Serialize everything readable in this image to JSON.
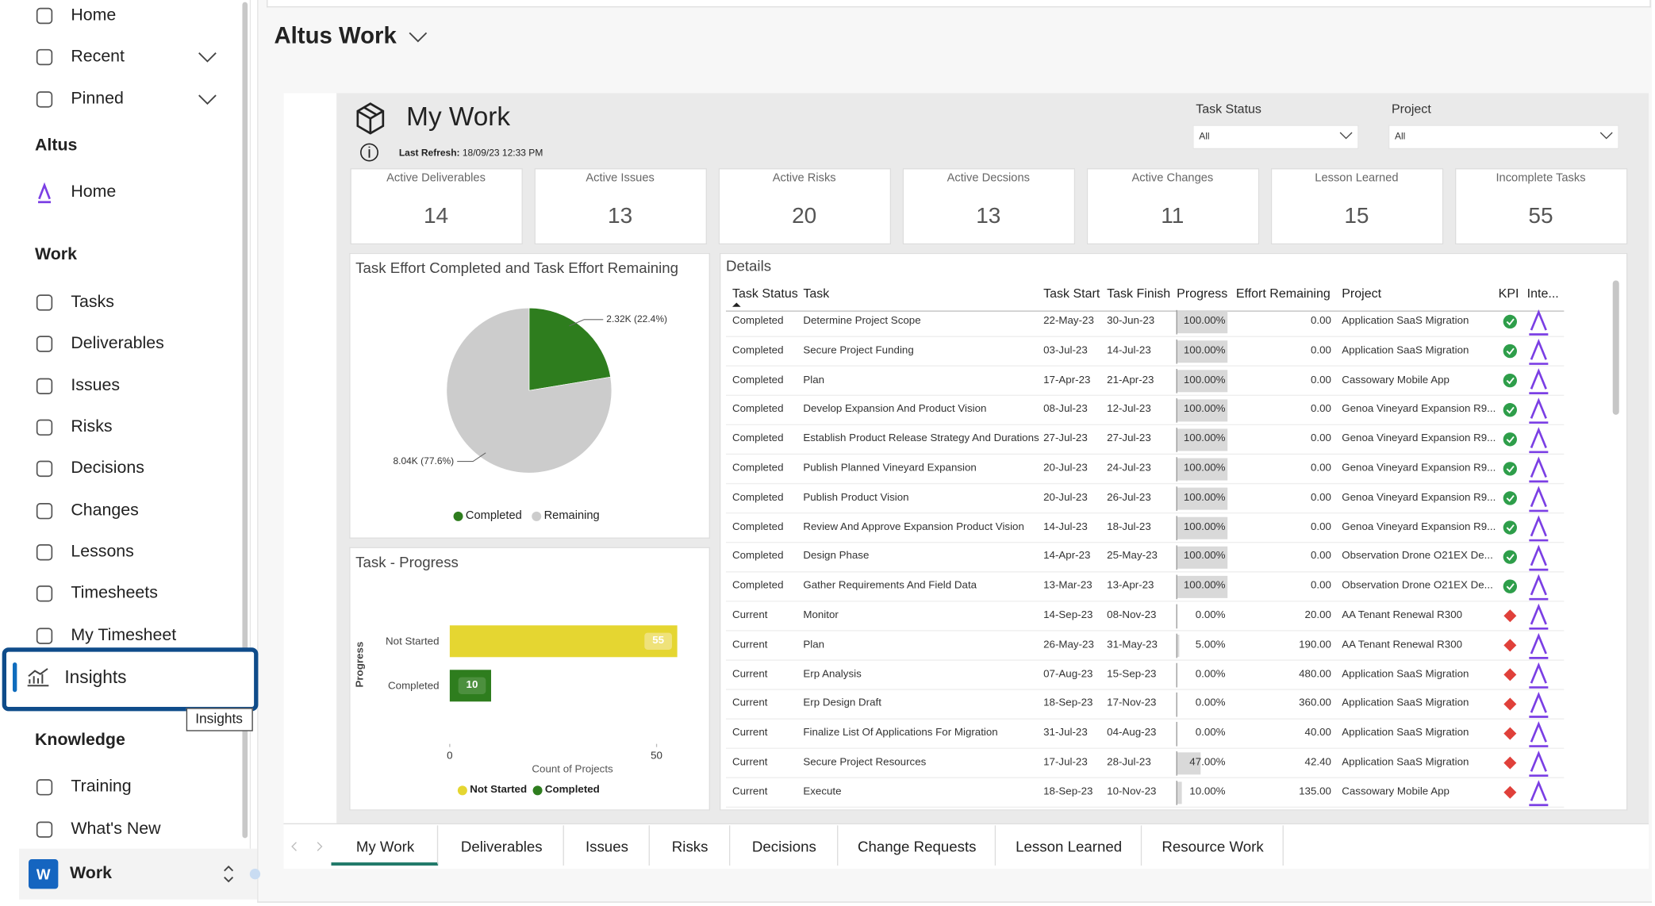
{
  "sidebar": {
    "nav": [
      "Home",
      "Recent",
      "Pinned"
    ],
    "sections": [
      {
        "title": "Altus",
        "items": [
          "Home"
        ]
      },
      {
        "title": "Work",
        "items": [
          "Tasks",
          "Deliverables",
          "Issues",
          "Risks",
          "Decisions",
          "Changes",
          "Lessons",
          "Timesheets",
          "My Timesheet",
          "Insights"
        ]
      },
      {
        "title": "Knowledge",
        "items": [
          "Training",
          "What's New"
        ]
      }
    ],
    "tooltip": "Insights",
    "footer": {
      "badge": "W",
      "label": "Work"
    }
  },
  "header": {
    "title": "Altus Work"
  },
  "report": {
    "title": "My Work",
    "last_refresh_label": "Last Refresh:",
    "last_refresh": "18/09/23 12:33 PM",
    "filters": [
      {
        "label": "Task Status",
        "value": "All"
      },
      {
        "label": "Project",
        "value": "All"
      }
    ],
    "cards": [
      {
        "label": "Active Deliverables",
        "value": 14
      },
      {
        "label": "Active Issues",
        "value": 13
      },
      {
        "label": "Active Risks",
        "value": 20
      },
      {
        "label": "Active Decsions",
        "value": 13
      },
      {
        "label": "Active Changes",
        "value": 11
      },
      {
        "label": "Lesson Learned",
        "value": 15
      },
      {
        "label": "Incomplete Tasks",
        "value": 55
      }
    ],
    "pie_chart": {
      "type": "pie",
      "title": "Task Effort Completed and Task Effort Remaining",
      "categories": [
        "Completed",
        "Remaining"
      ],
      "values": [
        2320,
        8040
      ],
      "value_labels": [
        "2.32K (22.4%)",
        "8.04K (77.6%)"
      ],
      "colors": [
        "#2e7d1e",
        "#cccccc"
      ]
    },
    "bar_chart": {
      "type": "bar",
      "orientation": "horizontal",
      "title": "Task - Progress",
      "y_label": "Progress",
      "x_label": "Count of Projects",
      "categories": [
        "Not Started",
        "Completed"
      ],
      "values": [
        55,
        10
      ],
      "colors": [
        "#e5d631",
        "#2e7d1e"
      ],
      "xlim": [
        0,
        55
      ],
      "xticks": [
        0,
        50
      ]
    },
    "details": {
      "title": "Details",
      "columns": [
        "Task Status",
        "Task",
        "Task Start",
        "Task Finish",
        "Progress",
        "Effort Remaining",
        "Project",
        "KPI",
        "Inte..."
      ],
      "rows": [
        {
          "status": "Completed",
          "task": "Determine Project Scope",
          "start": "22-May-23",
          "finish": "30-Jun-23",
          "progress": {
            "value": 100,
            "label": "100.00%"
          },
          "remaining": "0.00",
          "project": "Application SaaS Migration",
          "kpi": "#2e9e4a"
        },
        {
          "status": "Completed",
          "task": "Secure Project Funding",
          "start": "03-Jul-23",
          "finish": "14-Jul-23",
          "progress": {
            "value": 100,
            "label": "100.00%"
          },
          "remaining": "0.00",
          "project": "Application SaaS Migration",
          "kpi": "#2e9e4a"
        },
        {
          "status": "Completed",
          "task": "Plan",
          "start": "17-Apr-23",
          "finish": "21-Apr-23",
          "progress": {
            "value": 100,
            "label": "100.00%"
          },
          "remaining": "0.00",
          "project": "Cassowary Mobile App",
          "kpi": "#2e9e4a"
        },
        {
          "status": "Completed",
          "task": "Develop Expansion And Product Vision",
          "start": "08-Jul-23",
          "finish": "12-Jul-23",
          "progress": {
            "value": 100,
            "label": "100.00%"
          },
          "remaining": "0.00",
          "project": "Genoa Vineyard Expansion R9...",
          "kpi": "#2e9e4a"
        },
        {
          "status": "Completed",
          "task": "Establish Product Release Strategy And Durations",
          "start": "27-Jul-23",
          "finish": "27-Jul-23",
          "progress": {
            "value": 100,
            "label": "100.00%"
          },
          "remaining": "0.00",
          "project": "Genoa Vineyard Expansion R9...",
          "kpi": "#2e9e4a"
        },
        {
          "status": "Completed",
          "task": "Publish Planned Vineyard Expansion",
          "start": "20-Jul-23",
          "finish": "24-Jul-23",
          "progress": {
            "value": 100,
            "label": "100.00%"
          },
          "remaining": "0.00",
          "project": "Genoa Vineyard Expansion R9...",
          "kpi": "#2e9e4a"
        },
        {
          "status": "Completed",
          "task": "Publish Product Vision",
          "start": "20-Jul-23",
          "finish": "26-Jul-23",
          "progress": {
            "value": 100,
            "label": "100.00%"
          },
          "remaining": "0.00",
          "project": "Genoa Vineyard Expansion R9...",
          "kpi": "#2e9e4a"
        },
        {
          "status": "Completed",
          "task": "Review And Approve Expansion Product Vision",
          "start": "14-Jul-23",
          "finish": "18-Jul-23",
          "progress": {
            "value": 100,
            "label": "100.00%"
          },
          "remaining": "0.00",
          "project": "Genoa Vineyard Expansion R9...",
          "kpi": "#2e9e4a"
        },
        {
          "status": "Completed",
          "task": "Design Phase",
          "start": "14-Apr-23",
          "finish": "25-May-23",
          "progress": {
            "value": 100,
            "label": "100.00%"
          },
          "remaining": "0.00",
          "project": "Observation Drone O21EX De...",
          "kpi": "#2e9e4a"
        },
        {
          "status": "Completed",
          "task": "Gather Requirements And Field Data",
          "start": "13-Mar-23",
          "finish": "13-Apr-23",
          "progress": {
            "value": 100,
            "label": "100.00%"
          },
          "remaining": "0.00",
          "project": "Observation Drone O21EX De...",
          "kpi": "#2e9e4a"
        },
        {
          "status": "Current",
          "task": "Monitor",
          "start": "14-Sep-23",
          "finish": "08-Nov-23",
          "progress": {
            "value": 0,
            "label": "0.00%"
          },
          "remaining": "20.00",
          "project": "AA Tenant Renewal R300",
          "kpi": "#e0403a"
        },
        {
          "status": "Current",
          "task": "Plan",
          "start": "26-May-23",
          "finish": "31-May-23",
          "progress": {
            "value": 5,
            "label": "5.00%"
          },
          "remaining": "190.00",
          "project": "AA Tenant Renewal R300",
          "kpi": "#e0403a"
        },
        {
          "status": "Current",
          "task": "Erp Analysis",
          "start": "07-Aug-23",
          "finish": "15-Sep-23",
          "progress": {
            "value": 0,
            "label": "0.00%"
          },
          "remaining": "480.00",
          "project": "Application SaaS Migration",
          "kpi": "#e0403a"
        },
        {
          "status": "Current",
          "task": "Erp Design Draft",
          "start": "18-Sep-23",
          "finish": "17-Nov-23",
          "progress": {
            "value": 0,
            "label": "0.00%"
          },
          "remaining": "360.00",
          "project": "Application SaaS Migration",
          "kpi": "#e0403a"
        },
        {
          "status": "Current",
          "task": "Finalize List Of Applications For Migration",
          "start": "31-Jul-23",
          "finish": "04-Aug-23",
          "progress": {
            "value": 0,
            "label": "0.00%"
          },
          "remaining": "40.00",
          "project": "Application SaaS Migration",
          "kpi": "#e0403a"
        },
        {
          "status": "Current",
          "task": "Secure Project Resources",
          "start": "17-Jul-23",
          "finish": "28-Jul-23",
          "progress": {
            "value": 47,
            "label": "47.00%"
          },
          "remaining": "42.40",
          "project": "Application SaaS Migration",
          "kpi": "#e0403a"
        },
        {
          "status": "Current",
          "task": "Execute",
          "start": "18-Sep-23",
          "finish": "10-Nov-23",
          "progress": {
            "value": 10,
            "label": "10.00%"
          },
          "remaining": "135.00",
          "project": "Cassowary Mobile App",
          "kpi": "#e0403a"
        }
      ]
    },
    "tabs": [
      "My Work",
      "Deliverables",
      "Issues",
      "Risks",
      "Decisions",
      "Change Requests",
      "Lesson Learned",
      "Resource Work"
    ]
  }
}
